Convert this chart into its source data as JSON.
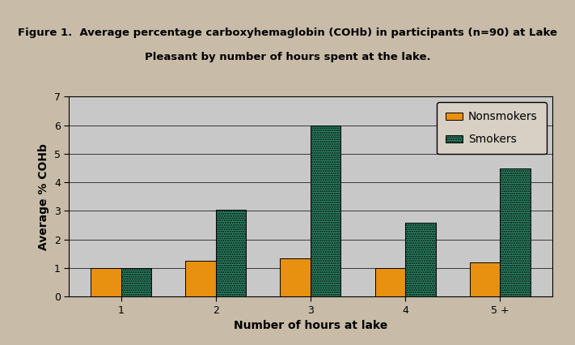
{
  "title_line1": "Figure 1.  Average percentage carboxyhemaglobin (COHb) in participants (n=90) at Lake",
  "title_line2": "Pleasant by number of hours spent at the lake.",
  "xlabel": "Number of hours at lake",
  "ylabel": "Average % COHb",
  "categories": [
    "1",
    "2",
    "3",
    "4",
    "5 +"
  ],
  "nonsmokers": [
    1.0,
    1.25,
    1.35,
    1.0,
    1.2
  ],
  "smokers": [
    1.0,
    3.05,
    6.0,
    2.6,
    4.5
  ],
  "nonsmoker_color": "#E89010",
  "smoker_color": "#2E8B6A",
  "ylim": [
    0,
    7
  ],
  "yticks": [
    0,
    1,
    2,
    3,
    4,
    5,
    6,
    7
  ],
  "bar_width": 0.32,
  "plot_bg_color": "#C8C8C8",
  "fig_bg_color": "#C8BCA8",
  "legend_bg_color": "#D8D0C4",
  "title_fontsize": 9.5,
  "axis_label_fontsize": 10,
  "tick_fontsize": 9,
  "legend_fontsize": 10
}
